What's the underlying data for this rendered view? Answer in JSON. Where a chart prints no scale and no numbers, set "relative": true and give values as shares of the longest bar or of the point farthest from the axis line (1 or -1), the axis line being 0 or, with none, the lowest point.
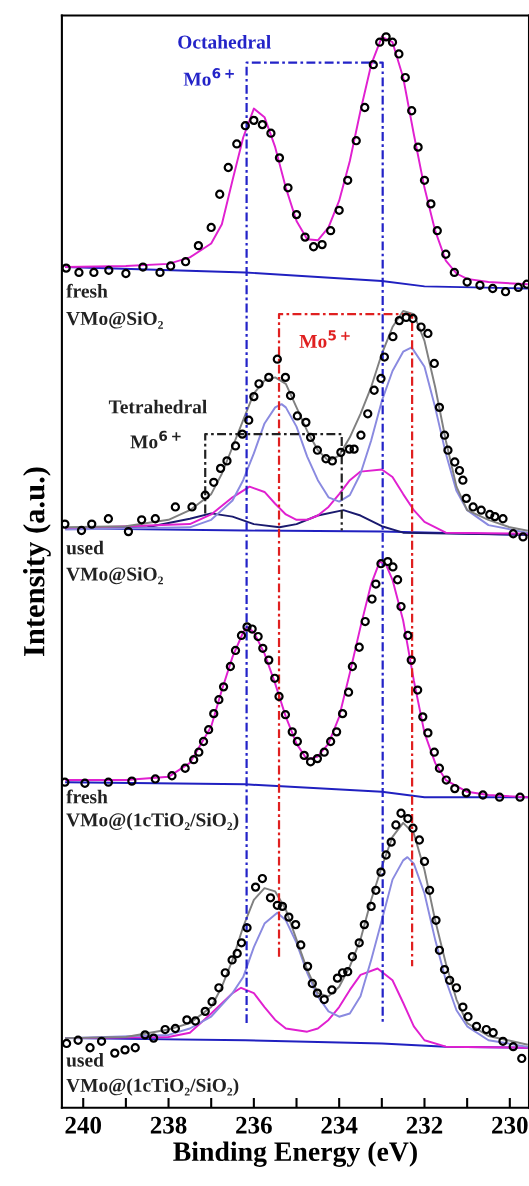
{
  "chart_data": {
    "type": "scatter",
    "xlabel": "Binding Energy (eV)",
    "ylabel": "Intensity (a.u.)",
    "relative": true,
    "grid": false,
    "legend": false,
    "xlim": [
      240.5,
      229.55
    ],
    "xticks": [
      240,
      {
        "value": 239,
        "label": null
      },
      238,
      {
        "value": 237,
        "label": null
      },
      236,
      {
        "value": 235,
        "label": null
      },
      234,
      {
        "value": 233,
        "label": null
      },
      232,
      {
        "value": 231,
        "label": null
      },
      230
    ],
    "series": [
      {
        "type": "line",
        "color": "#2020c0",
        "x": [
          240.4,
          236.2,
          233.0,
          232.0,
          229.6
        ],
        "values": [
          0.785,
          0.78,
          0.772,
          0.767,
          0.765
        ]
      },
      {
        "type": "line",
        "color": "#e020d0",
        "x": [
          240.4,
          239,
          238,
          237.5,
          237,
          236.75,
          236.5,
          236.25,
          236,
          235.75,
          235.5,
          235.25,
          235,
          234.75,
          234.5,
          234.25,
          234,
          233.75,
          233.5,
          233.25,
          233,
          232.75,
          232.5,
          232.25,
          232,
          231.75,
          231.5,
          231.25,
          231,
          230.5,
          229.6
        ],
        "values": [
          0.785,
          0.786,
          0.788,
          0.794,
          0.807,
          0.825,
          0.866,
          0.906,
          0.933,
          0.925,
          0.897,
          0.859,
          0.828,
          0.811,
          0.81,
          0.822,
          0.847,
          0.884,
          0.931,
          0.974,
          1.0,
          0.995,
          0.962,
          0.909,
          0.859,
          0.819,
          0.791,
          0.779,
          0.774,
          0.771,
          0.769
        ]
      },
      {
        "marker": "circle",
        "color": "#000000",
        "x": [
          240.4,
          240.1,
          239.75,
          239.4,
          239.0,
          238.6,
          238.2,
          237.95,
          237.6,
          237.3,
          237.0,
          236.8,
          236.6,
          236.4,
          236.2,
          236.0,
          235.8,
          235.6,
          235.4,
          235.2,
          235.0,
          234.8,
          234.6,
          234.4,
          234.2,
          234.0,
          233.8,
          233.6,
          233.4,
          233.2,
          233.05,
          232.9,
          232.75,
          232.6,
          232.45,
          232.3,
          232.15,
          232.0,
          231.85,
          231.7,
          231.5,
          231.3,
          231.0,
          230.7,
          230.4,
          230.1,
          229.8,
          229.6
        ],
        "values": [
          0.784,
          0.78,
          0.78,
          0.782,
          0.779,
          0.785,
          0.78,
          0.786,
          0.79,
          0.805,
          0.822,
          0.853,
          0.878,
          0.9,
          0.917,
          0.922,
          0.918,
          0.91,
          0.887,
          0.859,
          0.834,
          0.813,
          0.804,
          0.806,
          0.819,
          0.838,
          0.866,
          0.903,
          0.934,
          0.974,
          0.995,
          1.0,
          0.995,
          0.984,
          0.962,
          0.931,
          0.897,
          0.866,
          0.844,
          0.819,
          0.797,
          0.78,
          0.771,
          0.768,
          0.765,
          0.762,
          0.766,
          0.769
        ]
      },
      {
        "type": "line",
        "color": "#2020c0",
        "x": [
          240.4,
          236.2,
          233.0,
          229.6
        ],
        "values": [
          0.541,
          0.539,
          0.538,
          0.535
        ]
      },
      {
        "type": "line",
        "color": "#1a1a6e",
        "x": [
          240.4,
          238.5,
          237.5,
          237.0,
          236.5,
          236.0,
          235.4,
          235.0,
          234.5,
          233.9,
          233.5,
          233.0,
          232.5,
          229.6
        ],
        "values": [
          0.541,
          0.542,
          0.55,
          0.555,
          0.552,
          0.545,
          0.542,
          0.545,
          0.553,
          0.558,
          0.553,
          0.543,
          0.537,
          0.535
        ]
      },
      {
        "type": "line",
        "color": "#e020d0",
        "x": [
          240.4,
          237.5,
          237.0,
          236.5,
          236.1,
          235.75,
          235.5,
          235.25,
          235.0,
          234.75,
          234.5,
          234.25,
          234.0,
          233.75,
          233.5,
          233.0,
          232.75,
          232.5,
          232.25,
          232.0,
          231.5,
          229.6
        ],
        "values": [
          0.541,
          0.545,
          0.554,
          0.57,
          0.58,
          0.575,
          0.564,
          0.554,
          0.549,
          0.549,
          0.553,
          0.561,
          0.573,
          0.586,
          0.594,
          0.596,
          0.589,
          0.573,
          0.558,
          0.547,
          0.537,
          0.536
        ]
      },
      {
        "type": "line",
        "color": "#8a8ae0",
        "x": [
          240.4,
          237.5,
          237.0,
          236.5,
          236.25,
          236.0,
          235.75,
          235.5,
          235.35,
          235.25,
          235.0,
          234.75,
          234.5,
          234.25,
          234.0,
          233.75,
          233.5,
          233.25,
          233.0,
          232.75,
          232.5,
          232.3,
          232.0,
          231.75,
          231.5,
          231.25,
          231.0,
          230.5,
          229.6
        ],
        "values": [
          0.54,
          0.542,
          0.549,
          0.567,
          0.586,
          0.611,
          0.639,
          0.654,
          0.657,
          0.654,
          0.636,
          0.608,
          0.586,
          0.57,
          0.566,
          0.572,
          0.592,
          0.623,
          0.66,
          0.688,
          0.706,
          0.71,
          0.692,
          0.654,
          0.611,
          0.576,
          0.558,
          0.544,
          0.537
        ]
      },
      {
        "type": "line",
        "color": "#808080",
        "x": [
          240.4,
          239,
          238,
          237.5,
          237,
          236.75,
          236.5,
          236.25,
          236,
          235.75,
          235.5,
          235.25,
          235,
          234.75,
          234.5,
          234.25,
          234,
          233.75,
          233.5,
          233.25,
          233,
          232.75,
          232.5,
          232.25,
          232,
          231.75,
          231.5,
          231.25,
          231,
          230.5,
          230,
          229.6
        ],
        "values": [
          0.542,
          0.543,
          0.549,
          0.558,
          0.573,
          0.592,
          0.617,
          0.642,
          0.667,
          0.679,
          0.682,
          0.676,
          0.654,
          0.632,
          0.614,
          0.604,
          0.609,
          0.626,
          0.648,
          0.673,
          0.704,
          0.729,
          0.744,
          0.741,
          0.716,
          0.673,
          0.623,
          0.58,
          0.558,
          0.549,
          0.542,
          0.539
        ]
      },
      {
        "marker": "circle",
        "color": "#000000",
        "x": [
          240.43,
          240.04,
          239.8,
          239.41,
          238.94,
          238.63,
          238.31,
          237.84,
          237.45,
          237.14,
          236.94,
          236.78,
          236.63,
          236.43,
          236.27,
          236.12,
          236.0,
          235.88,
          235.65,
          235.45,
          235.26,
          235.14,
          234.98,
          234.78,
          234.67,
          234.51,
          234.31,
          234.16,
          233.96,
          233.76,
          233.65,
          233.49,
          233.33,
          233.18,
          233.02,
          232.94,
          232.74,
          232.59,
          232.43,
          232.27,
          232.08,
          231.92,
          231.77,
          231.65,
          231.53,
          231.45,
          231.29,
          231.18,
          231.1,
          231.02,
          230.86,
          230.67,
          230.47,
          230.35,
          230.16,
          229.92,
          229.69
        ],
        "values": [
          0.545,
          0.539,
          0.545,
          0.55,
          0.538,
          0.549,
          0.55,
          0.561,
          0.561,
          0.572,
          0.584,
          0.597,
          0.604,
          0.618,
          0.629,
          0.642,
          0.664,
          0.676,
          0.682,
          0.699,
          0.682,
          0.665,
          0.646,
          0.64,
          0.626,
          0.614,
          0.606,
          0.604,
          0.612,
          0.615,
          0.615,
          0.628,
          0.648,
          0.67,
          0.681,
          0.701,
          0.72,
          0.735,
          0.738,
          0.737,
          0.729,
          0.723,
          0.695,
          0.654,
          0.628,
          0.614,
          0.603,
          0.595,
          0.586,
          0.569,
          0.561,
          0.558,
          0.554,
          0.552,
          0.55,
          0.536,
          0.533
        ]
      },
      {
        "type": "line",
        "color": "#2020c0",
        "x": [
          240.4,
          236.2,
          233.0,
          232.0,
          229.6
        ],
        "values": [
          0.304,
          0.302,
          0.295,
          0.29,
          0.29
        ]
      },
      {
        "type": "line",
        "color": "#e020d0",
        "x": [
          240.4,
          239,
          238,
          237.5,
          237,
          236.75,
          236.5,
          236.25,
          236.15,
          236,
          235.75,
          235.5,
          235.25,
          235,
          234.75,
          234.5,
          234.25,
          234,
          233.75,
          233.5,
          233.25,
          233.05,
          232.9,
          232.75,
          232.5,
          232.25,
          232,
          231.75,
          231.5,
          231,
          230.5,
          229.6
        ],
        "values": [
          0.306,
          0.306,
          0.309,
          0.322,
          0.356,
          0.39,
          0.421,
          0.444,
          0.449,
          0.444,
          0.424,
          0.396,
          0.365,
          0.34,
          0.325,
          0.328,
          0.34,
          0.365,
          0.406,
          0.449,
          0.489,
          0.51,
          0.507,
          0.493,
          0.455,
          0.399,
          0.35,
          0.322,
          0.306,
          0.295,
          0.292,
          0.29
        ]
      },
      {
        "marker": "circle",
        "color": "#000000",
        "x": [
          240.43,
          239.96,
          239.41,
          238.86,
          238.31,
          237.92,
          237.61,
          237.41,
          237.29,
          237.18,
          237.06,
          236.94,
          236.82,
          236.71,
          236.55,
          236.43,
          236.29,
          236.16,
          236.04,
          235.9,
          235.79,
          235.65,
          235.51,
          235.41,
          235.26,
          235.1,
          234.98,
          234.82,
          234.67,
          234.51,
          234.35,
          234.2,
          234.06,
          233.92,
          233.78,
          233.69,
          233.53,
          233.39,
          233.23,
          233.14,
          233.02,
          232.86,
          232.74,
          232.63,
          232.55,
          232.39,
          232.31,
          232.16,
          232.04,
          231.92,
          231.77,
          231.65,
          231.49,
          231.29,
          231.02,
          230.63,
          230.24,
          229.76
        ],
        "values": [
          0.304,
          0.303,
          0.304,
          0.305,
          0.307,
          0.31,
          0.317,
          0.325,
          0.332,
          0.342,
          0.353,
          0.368,
          0.381,
          0.393,
          0.412,
          0.427,
          0.441,
          0.449,
          0.447,
          0.44,
          0.429,
          0.418,
          0.401,
          0.384,
          0.367,
          0.351,
          0.342,
          0.329,
          0.323,
          0.326,
          0.332,
          0.342,
          0.351,
          0.368,
          0.388,
          0.412,
          0.43,
          0.454,
          0.475,
          0.489,
          0.508,
          0.51,
          0.505,
          0.493,
          0.468,
          0.441,
          0.418,
          0.39,
          0.365,
          0.35,
          0.332,
          0.317,
          0.306,
          0.298,
          0.294,
          0.292,
          0.29,
          0.29
        ]
      },
      {
        "type": "line",
        "color": "#2020c0",
        "x": [
          240.4,
          236.2,
          233.0,
          231.5,
          229.6
        ],
        "values": [
          0.065,
          0.063,
          0.06,
          0.057,
          0.056
        ]
      },
      {
        "type": "line",
        "color": "#e020d0",
        "x": [
          240.4,
          238,
          237.5,
          237,
          236.5,
          236.3,
          236,
          235.75,
          235.5,
          235.25,
          234.75,
          234.5,
          234.25,
          234,
          233.75,
          233.5,
          233.1,
          232.75,
          232.5,
          232.25,
          232,
          231.5,
          229.6
        ],
        "values": [
          0.065,
          0.066,
          0.07,
          0.088,
          0.107,
          0.112,
          0.107,
          0.094,
          0.082,
          0.074,
          0.071,
          0.074,
          0.082,
          0.094,
          0.11,
          0.124,
          0.13,
          0.119,
          0.098,
          0.076,
          0.063,
          0.057,
          0.056
        ]
      },
      {
        "type": "line",
        "color": "#8a8ae0",
        "x": [
          240.4,
          238,
          237.5,
          237,
          236.5,
          236.25,
          236,
          235.75,
          235.45,
          235.25,
          235,
          234.75,
          234.5,
          234.25,
          234,
          233.75,
          233.5,
          233.25,
          233,
          232.75,
          232.5,
          232.4,
          232.25,
          232,
          231.75,
          231.5,
          231.25,
          231,
          230.5,
          229.6
        ],
        "values": [
          0.065,
          0.068,
          0.074,
          0.085,
          0.107,
          0.122,
          0.15,
          0.172,
          0.182,
          0.175,
          0.154,
          0.126,
          0.104,
          0.09,
          0.085,
          0.088,
          0.104,
          0.138,
          0.175,
          0.213,
          0.231,
          0.234,
          0.228,
          0.2,
          0.157,
          0.119,
          0.091,
          0.076,
          0.063,
          0.057
        ]
      },
      {
        "type": "line",
        "color": "#808080",
        "x": [
          240.4,
          239,
          238,
          237.5,
          237,
          236.75,
          236.5,
          236.25,
          236,
          235.75,
          235.5,
          235.25,
          235,
          234.75,
          234.5,
          234.25,
          234,
          233.75,
          233.5,
          233.25,
          233,
          232.75,
          232.5,
          232.25,
          232,
          231.75,
          231.5,
          231.25,
          231,
          230.5,
          229.6
        ],
        "values": [
          0.065,
          0.066,
          0.073,
          0.079,
          0.094,
          0.113,
          0.138,
          0.169,
          0.194,
          0.205,
          0.202,
          0.185,
          0.157,
          0.129,
          0.107,
          0.104,
          0.113,
          0.132,
          0.157,
          0.194,
          0.225,
          0.253,
          0.266,
          0.256,
          0.222,
          0.175,
          0.135,
          0.101,
          0.079,
          0.067,
          0.059
        ]
      },
      {
        "marker": "circle",
        "color": "#000000",
        "x": [
          240.39,
          240.12,
          239.84,
          239.57,
          239.26,
          239.02,
          238.78,
          238.55,
          238.35,
          238.08,
          237.84,
          237.57,
          237.37,
          237.14,
          236.98,
          236.82,
          236.67,
          236.51,
          236.39,
          236.29,
          236.16,
          235.96,
          235.8,
          235.61,
          235.45,
          235.33,
          235.18,
          235.02,
          234.9,
          234.74,
          234.63,
          234.51,
          234.35,
          234.17,
          234.04,
          233.92,
          233.8,
          233.69,
          233.53,
          233.41,
          233.25,
          233.14,
          233.02,
          232.9,
          232.78,
          232.67,
          232.55,
          232.39,
          232.27,
          232.12,
          232.0,
          231.88,
          231.73,
          231.65,
          231.53,
          231.41,
          231.25,
          231.1,
          230.98,
          230.78,
          230.55,
          230.39,
          230.16,
          229.92,
          229.72
        ],
        "values": [
          0.06,
          0.063,
          0.056,
          0.062,
          0.051,
          0.054,
          0.056,
          0.068,
          0.065,
          0.073,
          0.074,
          0.082,
          0.081,
          0.09,
          0.099,
          0.112,
          0.126,
          0.138,
          0.144,
          0.154,
          0.168,
          0.206,
          0.214,
          0.196,
          0.189,
          0.188,
          0.178,
          0.171,
          0.152,
          0.132,
          0.116,
          0.107,
          0.101,
          0.11,
          0.121,
          0.126,
          0.127,
          0.141,
          0.154,
          0.171,
          0.188,
          0.203,
          0.22,
          0.236,
          0.248,
          0.264,
          0.275,
          0.27,
          0.261,
          0.25,
          0.23,
          0.203,
          0.175,
          0.147,
          0.129,
          0.119,
          0.112,
          0.094,
          0.085,
          0.076,
          0.073,
          0.07,
          0.062,
          0.057,
          0.046
        ]
      },
      {
        "type": "line",
        "line_style": "dashed",
        "color": "#2323c8",
        "x": [
          236.17,
          236.17,
          232.98,
          232.98
        ],
        "values": [
          0.079,
          0.976,
          0.976,
          0.079
        ]
      },
      {
        "type": "line",
        "line_style": "dashed",
        "color": "#e02020",
        "x": [
          235.41,
          235.41,
          232.29,
          232.29
        ],
        "values": [
          0.141,
          0.741,
          0.741,
          0.132
        ]
      },
      {
        "type": "line",
        "line_style": "dashed",
        "color": "#222222",
        "x": [
          237.14,
          237.14,
          233.94,
          233.94
        ],
        "values": [
          0.555,
          0.629,
          0.629,
          0.539
        ]
      }
    ],
    "annotations": [
      "Octahedral",
      "Mo$^{6+}$",
      "Mo$^{5+}$",
      "Tetrahedral",
      "Mo$^{6+}$",
      "fresh",
      "VMo@SiO₂",
      "used",
      "VMo@SiO₂",
      "fresh",
      "VMo@(1cTiO₂/SiO₂)",
      "used",
      "VMo@(1cTiO₂/SiO₂)"
    ]
  }
}
